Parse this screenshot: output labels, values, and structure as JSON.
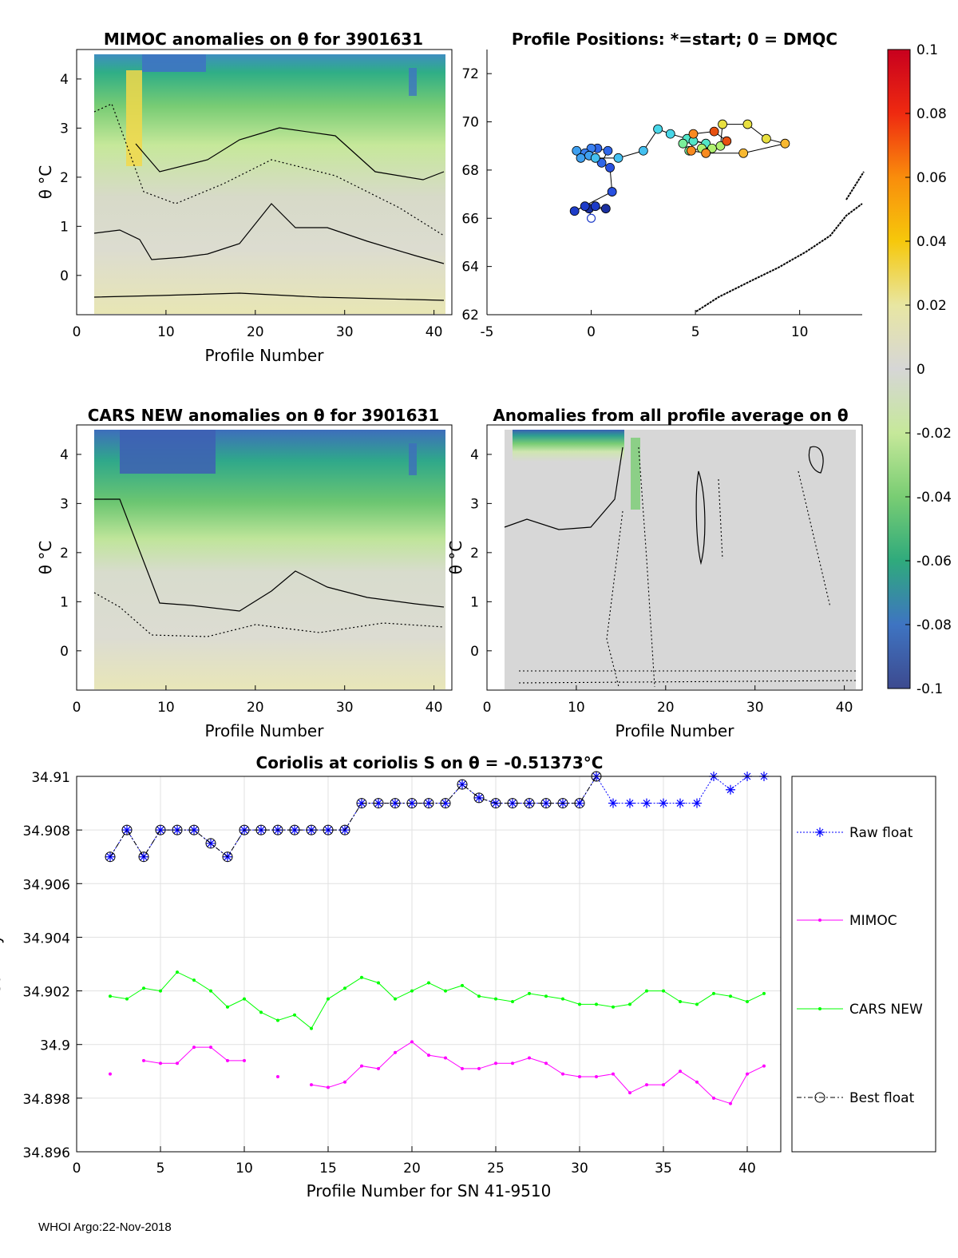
{
  "chart_data": [
    {
      "type": "heatmap",
      "title": "MIMOC anomalies on θ  for 3901631",
      "xlabel": "Profile Number",
      "ylabel": "θ °C",
      "xlim": [
        0,
        42
      ],
      "ylim": [
        -0.8,
        4.6
      ],
      "xticks": [
        "0",
        "10",
        "20",
        "30",
        "40"
      ],
      "yticks": [
        "0",
        "1",
        "2",
        "3",
        "4"
      ]
    },
    {
      "type": "scatter",
      "title": "Profile Positions: *=start; 0 = DMQC",
      "xlim": [
        -5,
        13
      ],
      "ylim": [
        62,
        73
      ],
      "xticks": [
        "-5",
        "0",
        "5",
        "10"
      ],
      "yticks": [
        "62",
        "64",
        "66",
        "68",
        "70",
        "72"
      ],
      "track": [
        [
          0,
          66
        ],
        [
          -0.1,
          66.4
        ],
        [
          0.7,
          66.4
        ],
        [
          0.2,
          66.5
        ],
        [
          -0.3,
          66.5
        ],
        [
          -0.8,
          66.3
        ],
        [
          1,
          67.1
        ],
        [
          0.9,
          68.1
        ],
        [
          0.5,
          68.3
        ],
        [
          0.8,
          68.8
        ],
        [
          0.3,
          68.9
        ],
        [
          0,
          68.9
        ],
        [
          -0.3,
          68.7
        ],
        [
          -0.7,
          68.8
        ],
        [
          -0.5,
          68.5
        ],
        [
          -0.1,
          68.6
        ],
        [
          0.2,
          68.5
        ],
        [
          1.3,
          68.5
        ],
        [
          2.5,
          68.8
        ],
        [
          3.2,
          69.7
        ],
        [
          3.8,
          69.5
        ],
        [
          4.6,
          69.3
        ],
        [
          5.5,
          69.1
        ],
        [
          4.9,
          69.2
        ],
        [
          4.4,
          69.1
        ],
        [
          4.7,
          68.8
        ],
        [
          5.3,
          68.9
        ],
        [
          5.8,
          68.9
        ],
        [
          6.2,
          69
        ],
        [
          6.3,
          69.9
        ],
        [
          7.5,
          69.9
        ],
        [
          8.4,
          69.3
        ],
        [
          9.3,
          69.1
        ],
        [
          7.3,
          68.7
        ],
        [
          5.5,
          68.7
        ],
        [
          4.8,
          68.8
        ],
        [
          4.9,
          69.5
        ],
        [
          5.9,
          69.6
        ],
        [
          6.5,
          69.2
        ]
      ],
      "colorbar": {
        "ticks": [
          "0.1",
          "0.08",
          "0.06",
          "0.04",
          "0.02",
          "0",
          "-0.02",
          "-0.04",
          "-0.06",
          "-0.08",
          "-0.1"
        ]
      }
    },
    {
      "type": "heatmap",
      "title": "CARS NEW anomalies on θ for 3901631",
      "xlabel": "Profile Number",
      "ylabel": "θ °C",
      "xlim": [
        0,
        42
      ],
      "ylim": [
        -0.8,
        4.6
      ],
      "xticks": [
        "0",
        "10",
        "20",
        "30",
        "40"
      ],
      "yticks": [
        "0",
        "1",
        "2",
        "3",
        "4"
      ]
    },
    {
      "type": "heatmap",
      "title": "Anomalies from all profile average on θ",
      "xlabel": "Profile Number",
      "ylabel": "θ °C",
      "xlim": [
        0,
        42
      ],
      "ylim": [
        -0.8,
        4.6
      ],
      "xticks": [
        "0",
        "10",
        "20",
        "30",
        "40"
      ],
      "yticks": [
        "0",
        "1",
        "2",
        "3",
        "4"
      ]
    },
    {
      "type": "line",
      "title": "Coriolis at coriolis S on θ = -0.51373°C",
      "xlabel": "Profile Number for SN 41-9510",
      "ylabel": "Salinity",
      "xlim": [
        0,
        42
      ],
      "ylim": [
        34.896,
        34.91
      ],
      "xticks": [
        "0",
        "5",
        "10",
        "15",
        "20",
        "25",
        "30",
        "35",
        "40"
      ],
      "yticks": [
        "34.896",
        "34.898",
        "34.9",
        "34.902",
        "34.904",
        "34.906",
        "34.908",
        "34.91"
      ],
      "x": [
        2,
        3,
        4,
        5,
        6,
        7,
        8,
        9,
        10,
        11,
        12,
        13,
        14,
        15,
        16,
        17,
        18,
        19,
        20,
        21,
        22,
        23,
        24,
        25,
        26,
        27,
        28,
        29,
        30,
        31,
        32,
        33,
        34,
        35,
        36,
        37,
        38,
        39,
        40,
        41
      ],
      "series": [
        {
          "name": "Raw float",
          "color": "#0000ff",
          "values": [
            34.907,
            34.908,
            34.907,
            34.908,
            34.908,
            34.908,
            34.9075,
            34.907,
            34.908,
            34.908,
            34.908,
            34.908,
            34.908,
            34.908,
            34.908,
            34.909,
            34.909,
            34.909,
            34.909,
            34.909,
            34.909,
            34.9097,
            34.9092,
            34.909,
            34.909,
            34.909,
            34.909,
            34.909,
            34.909,
            34.91,
            34.909,
            34.909,
            34.909,
            34.909,
            34.909,
            34.909,
            34.91,
            34.9095,
            34.91,
            34.91
          ]
        },
        {
          "name": "MIMOC",
          "color": "#ff00ff",
          "values": [
            34.8989,
            null,
            34.8994,
            34.8993,
            34.8993,
            34.8999,
            34.8999,
            34.8994,
            34.8994,
            null,
            34.8988,
            null,
            34.8985,
            34.8984,
            34.8986,
            34.8992,
            34.8991,
            34.8997,
            34.9001,
            34.8996,
            34.8995,
            34.8991,
            34.8991,
            34.8993,
            34.8993,
            34.8995,
            34.8993,
            34.8989,
            34.8988,
            34.8988,
            34.8989,
            34.8982,
            34.8985,
            34.8985,
            34.899,
            34.8986,
            34.898,
            34.8978,
            34.8989,
            34.8992
          ]
        },
        {
          "name": "CARS NEW",
          "color": "#00ff00",
          "values": [
            34.9018,
            34.9017,
            34.9021,
            34.902,
            34.9027,
            34.9024,
            34.902,
            34.9014,
            34.9017,
            34.9012,
            34.9009,
            34.9011,
            34.9006,
            34.9017,
            34.9021,
            34.9025,
            34.9023,
            34.9017,
            34.902,
            34.9023,
            34.902,
            34.9022,
            34.9018,
            34.9017,
            34.9016,
            34.9019,
            34.9018,
            34.9017,
            34.9015,
            34.9015,
            34.9014,
            34.9015,
            34.902,
            34.902,
            34.9016,
            34.9015,
            34.9019,
            34.9018,
            34.9016,
            34.9019
          ]
        },
        {
          "name": "Best float",
          "color": "#000000",
          "values": [
            34.907,
            34.908,
            34.907,
            34.908,
            34.908,
            34.908,
            34.9075,
            34.907,
            34.908,
            34.908,
            34.908,
            34.908,
            34.908,
            34.908,
            34.908,
            34.909,
            34.909,
            34.909,
            34.909,
            34.909,
            34.909,
            34.9097,
            34.9092,
            34.909,
            34.909,
            34.909,
            34.909,
            34.909,
            34.909,
            34.91,
            null,
            null,
            null,
            null,
            null,
            null,
            null,
            null,
            null,
            null
          ]
        }
      ]
    }
  ],
  "footer": "WHOI Argo:22-Nov-2018"
}
